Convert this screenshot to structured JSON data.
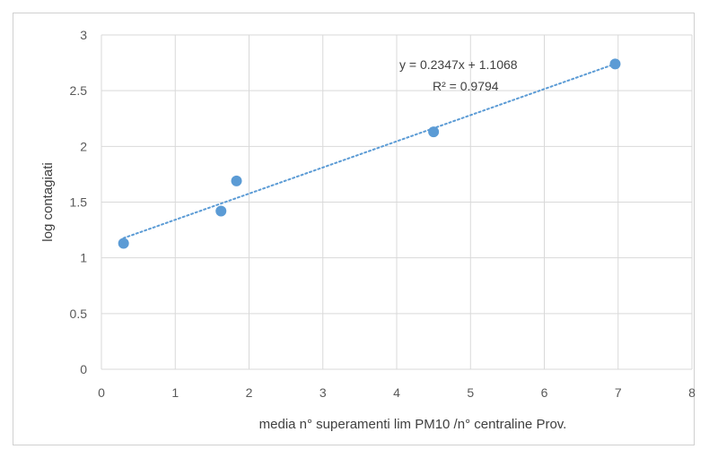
{
  "chart_data": {
    "type": "scatter",
    "title": "",
    "xlabel": "media n° superamenti lim PM10 /n° centraline Prov.",
    "ylabel": "log contagiati",
    "xlim": [
      0,
      8
    ],
    "ylim": [
      0,
      3
    ],
    "x_ticks": [
      "0",
      "1",
      "2",
      "3",
      "4",
      "5",
      "6",
      "7",
      "8"
    ],
    "y_ticks": [
      "0",
      "0.5",
      "1",
      "1.5",
      "2",
      "2.5",
      "3"
    ],
    "grid": true,
    "series": [
      {
        "points": [
          {
            "x": 0.3,
            "y": 1.13
          },
          {
            "x": 1.62,
            "y": 1.42
          },
          {
            "x": 1.83,
            "y": 1.69
          },
          {
            "x": 4.5,
            "y": 2.13
          },
          {
            "x": 6.96,
            "y": 2.74
          }
        ]
      }
    ],
    "trendline": {
      "type": "linear",
      "slope": 0.2347,
      "intercept": 1.1068,
      "x_from": 0.3,
      "x_to": 6.96,
      "equation": "y = 0.2347x + 1.1068",
      "r_squared": "R² = 0.9794"
    },
    "colors": {
      "marker": "#5b9bd5",
      "gridline": "#d9d9d9",
      "tick_text": "#595959"
    }
  }
}
